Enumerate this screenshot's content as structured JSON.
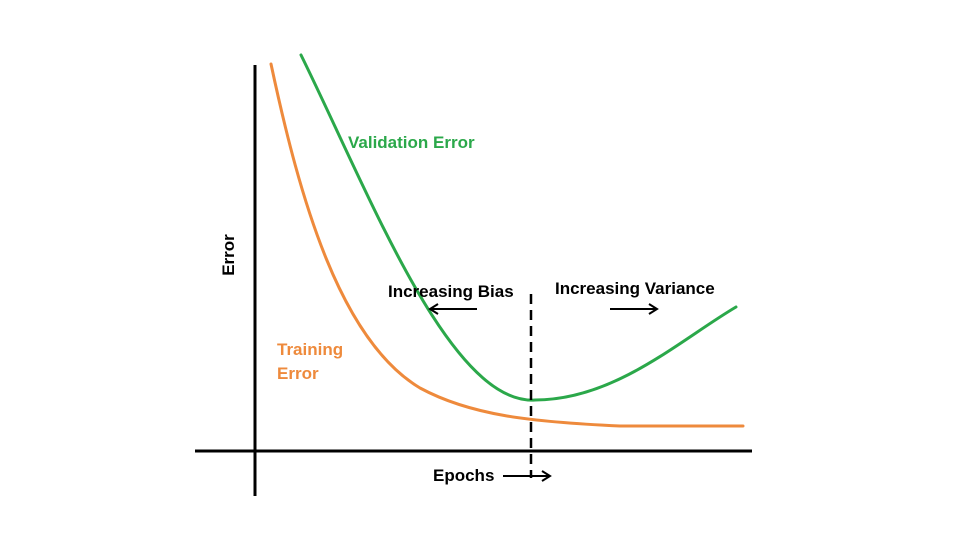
{
  "chart_data": {
    "type": "line",
    "title": "",
    "xlabel": "Epochs",
    "ylabel": "Error",
    "grid": false,
    "colors": {
      "validation": "#2ba84a",
      "training": "#ee8a3c",
      "axes": "#000000"
    },
    "series": [
      {
        "key": "validation",
        "name": "Validation Error",
        "trend": "decreases steeply to a minimum, then rises"
      },
      {
        "key": "training",
        "name": "Training Error",
        "trend": "decreases monotonically and plateaus"
      }
    ],
    "annotations": {
      "left_region": "Increasing Bias",
      "right_region": "Increasing Variance",
      "divider": "dashed line at the validation error minimum"
    }
  }
}
